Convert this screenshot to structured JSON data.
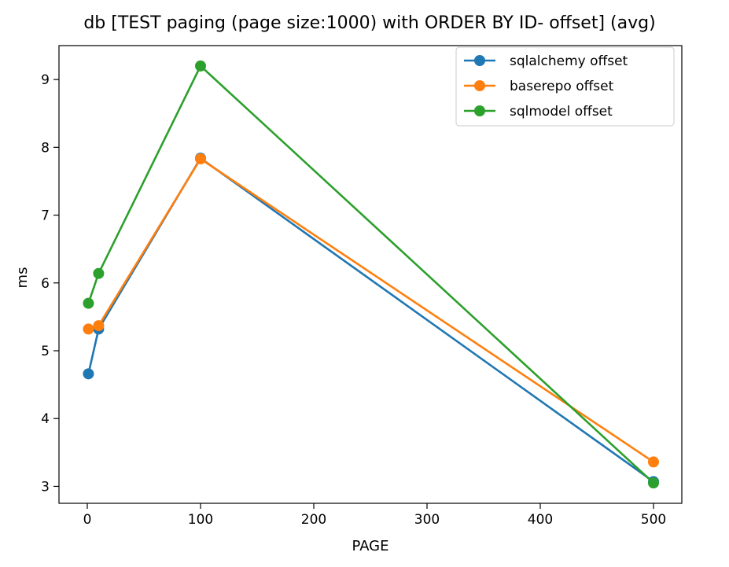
{
  "chart_data": {
    "type": "line",
    "title": "db [TEST paging (page size:1000) with ORDER BY ID- offset] (avg)",
    "xlabel": "PAGE",
    "ylabel": "ms",
    "xlim": [
      -25,
      525
    ],
    "ylim": [
      2.75,
      9.5
    ],
    "x_ticks": [
      0,
      100,
      200,
      300,
      400,
      500
    ],
    "y_ticks": [
      3,
      4,
      5,
      6,
      7,
      8,
      9
    ],
    "grid": false,
    "legend_position": "top-right",
    "x": [
      1,
      10,
      100,
      500
    ],
    "series": [
      {
        "name": "sqlalchemy offset",
        "color": "#1f77b4",
        "values": [
          4.66,
          5.32,
          7.84,
          3.07
        ]
      },
      {
        "name": "baserepo offset",
        "color": "#ff7f0e",
        "values": [
          5.32,
          5.37,
          7.83,
          3.36
        ]
      },
      {
        "name": "sqlmodel offset",
        "color": "#2ca02c",
        "values": [
          5.7,
          6.14,
          9.2,
          3.05
        ]
      }
    ]
  }
}
